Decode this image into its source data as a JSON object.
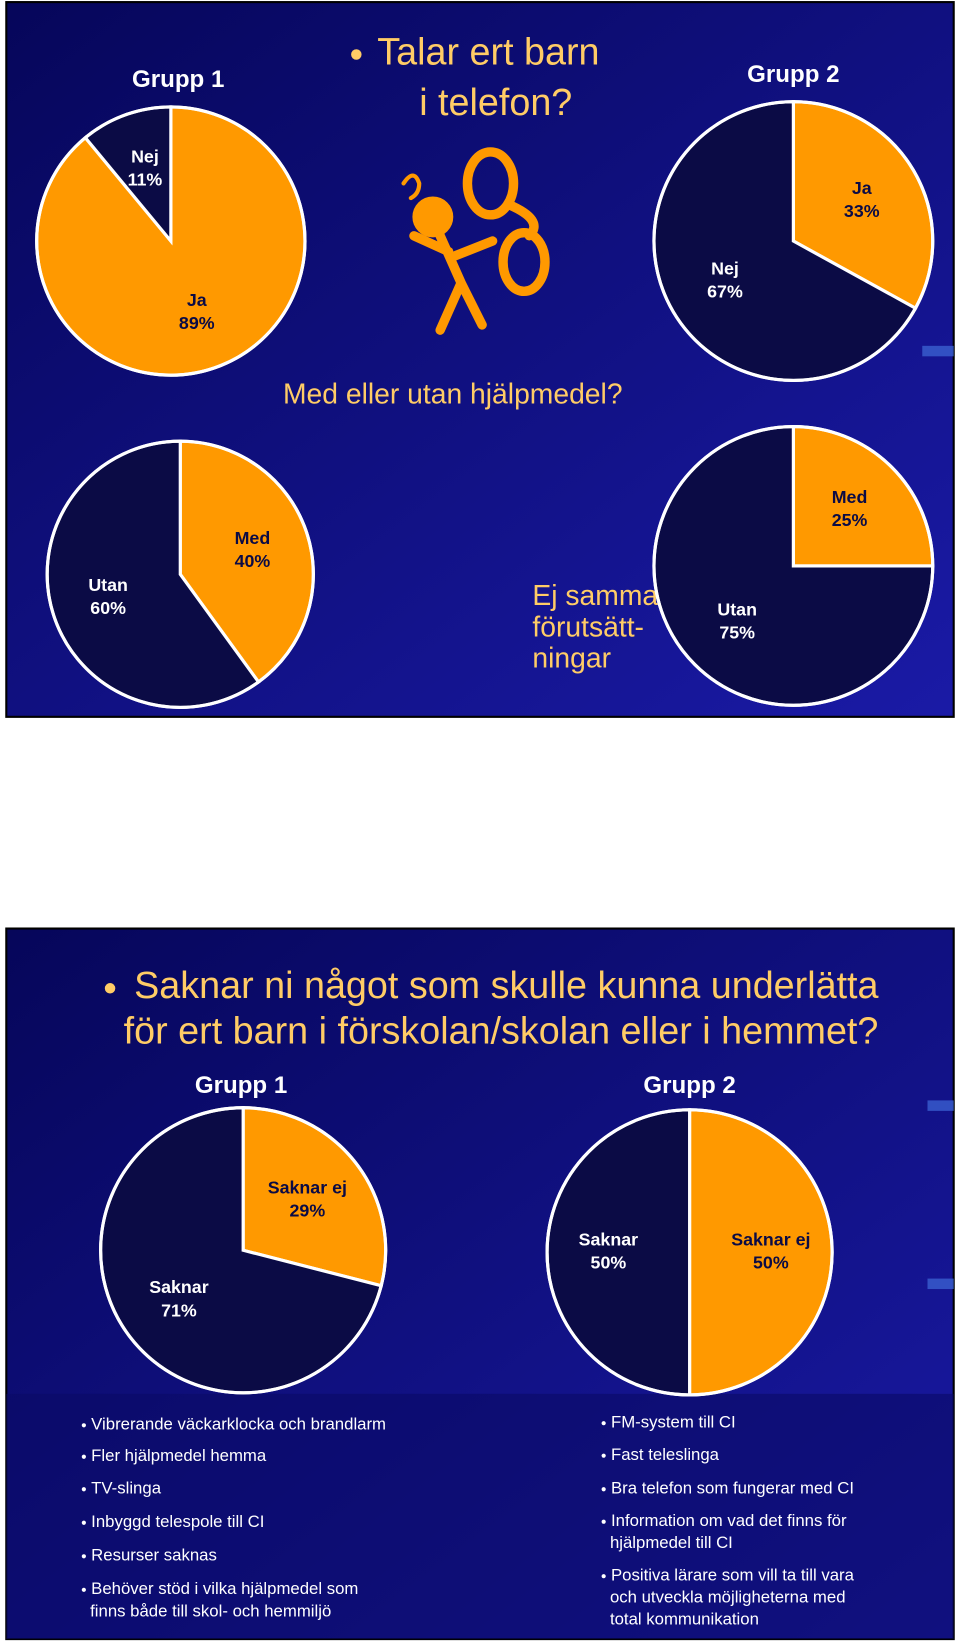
{
  "slides": [
    {
      "title": [
        "Talar ert barn",
        "i telefon?"
      ],
      "subtitle": "Med eller utan hjälpmedel?",
      "note": [
        "Ej samma",
        "förutsätt-",
        "ningar"
      ]
    },
    {
      "title": [
        "Saknar ni något som skulle kunna underlätta",
        "för ert barn i förskolan/skolan eller i hemmet?"
      ],
      "left_list": [
        [
          "Vibrerande väckarklocka och brandlarm"
        ],
        [
          "Fler hjälpmedel hemma"
        ],
        [
          "TV-slinga"
        ],
        [
          "Inbyggd telespole till CI"
        ],
        [
          "Resurser saknas"
        ],
        [
          "Behöver stöd i vilka hjälpmedel som",
          "finns både till skol- och hemmiljö"
        ]
      ],
      "right_list": [
        [
          "FM-system till CI"
        ],
        [
          "Fast teleslinga"
        ],
        [
          "Bra telefon som fungerar med CI"
        ],
        [
          "Information om vad det finns för",
          "hjälpmedel till CI"
        ],
        [
          "Positiva lärare som vill ta till vara",
          "och utveckla möjligheterna med",
          "total kommunikation"
        ]
      ]
    }
  ],
  "chart_data": [
    {
      "type": "pie",
      "title": "Grupp 1",
      "categories": [
        "Ja",
        "Nej"
      ],
      "values": [
        89,
        11
      ],
      "value_labels": [
        "89%",
        "11%"
      ],
      "colors": [
        "#ff9900",
        "#0b0b45"
      ]
    },
    {
      "type": "pie",
      "title": "Grupp 2",
      "categories": [
        "Ja",
        "Nej"
      ],
      "values": [
        33,
        67
      ],
      "value_labels": [
        "33%",
        "67%"
      ],
      "colors": [
        "#ff9900",
        "#0b0b45"
      ]
    },
    {
      "type": "pie",
      "categories": [
        "Med",
        "Utan"
      ],
      "values": [
        40,
        60
      ],
      "value_labels": [
        "40%",
        "60%"
      ],
      "colors": [
        "#ff9900",
        "#0b0b45"
      ]
    },
    {
      "type": "pie",
      "categories": [
        "Med",
        "Utan"
      ],
      "values": [
        25,
        75
      ],
      "value_labels": [
        "25%",
        "75%"
      ],
      "colors": [
        "#ff9900",
        "#0b0b45"
      ]
    },
    {
      "type": "pie",
      "title": "Grupp 1",
      "categories": [
        "Saknar ej",
        "Saknar"
      ],
      "values": [
        29,
        71
      ],
      "value_labels": [
        "29%",
        "71%"
      ],
      "colors": [
        "#ff9900",
        "#0b0b45"
      ]
    },
    {
      "type": "pie",
      "title": "Grupp 2",
      "categories": [
        "Saknar ej",
        "Saknar"
      ],
      "values": [
        50,
        50
      ],
      "value_labels": [
        "50%",
        "50%"
      ],
      "colors": [
        "#ff9900",
        "#0b0b45"
      ]
    }
  ]
}
